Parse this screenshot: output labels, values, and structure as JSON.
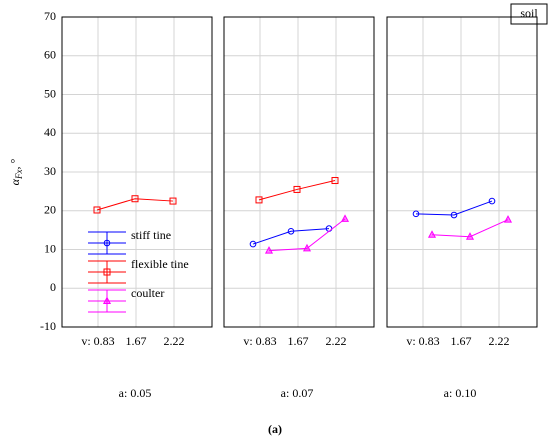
{
  "chart_data": {
    "type": "line",
    "ylabel": {
      "symbol": "α",
      "subscript": "Fx",
      "unit": ", °"
    },
    "ylim": [
      -10,
      70
    ],
    "yticks": [
      -10,
      0,
      10,
      20,
      30,
      40,
      50,
      60,
      70
    ],
    "grid": true,
    "categories": [
      "v: 0.83",
      "1.67",
      "2.22"
    ],
    "series": [
      {
        "name": "stiff tine",
        "color": "#0000ff",
        "marker": "circle"
      },
      {
        "name": "flexible tine",
        "color": "#ff0000",
        "marker": "square"
      },
      {
        "name": "coulter",
        "color": "#ff00ff",
        "marker": "triangle"
      }
    ],
    "panels": [
      {
        "label": "a: 0.05",
        "values": [
          [
            null,
            null,
            null
          ],
          [
            20.2,
            23.1,
            22.5
          ],
          [
            null,
            null,
            null
          ]
        ]
      },
      {
        "label": "a: 0.07",
        "values": [
          [
            11.4,
            14.7,
            15.4
          ],
          [
            22.8,
            25.5,
            27.8
          ],
          [
            9.7,
            10.3,
            17.9
          ]
        ]
      },
      {
        "label": "a: 0.10",
        "values": [
          [
            19.2,
            18.9,
            22.5
          ],
          [
            null,
            null,
            null
          ],
          [
            13.8,
            13.3,
            17.7
          ]
        ]
      }
    ],
    "annotation": "soil",
    "caption": "(a)"
  }
}
